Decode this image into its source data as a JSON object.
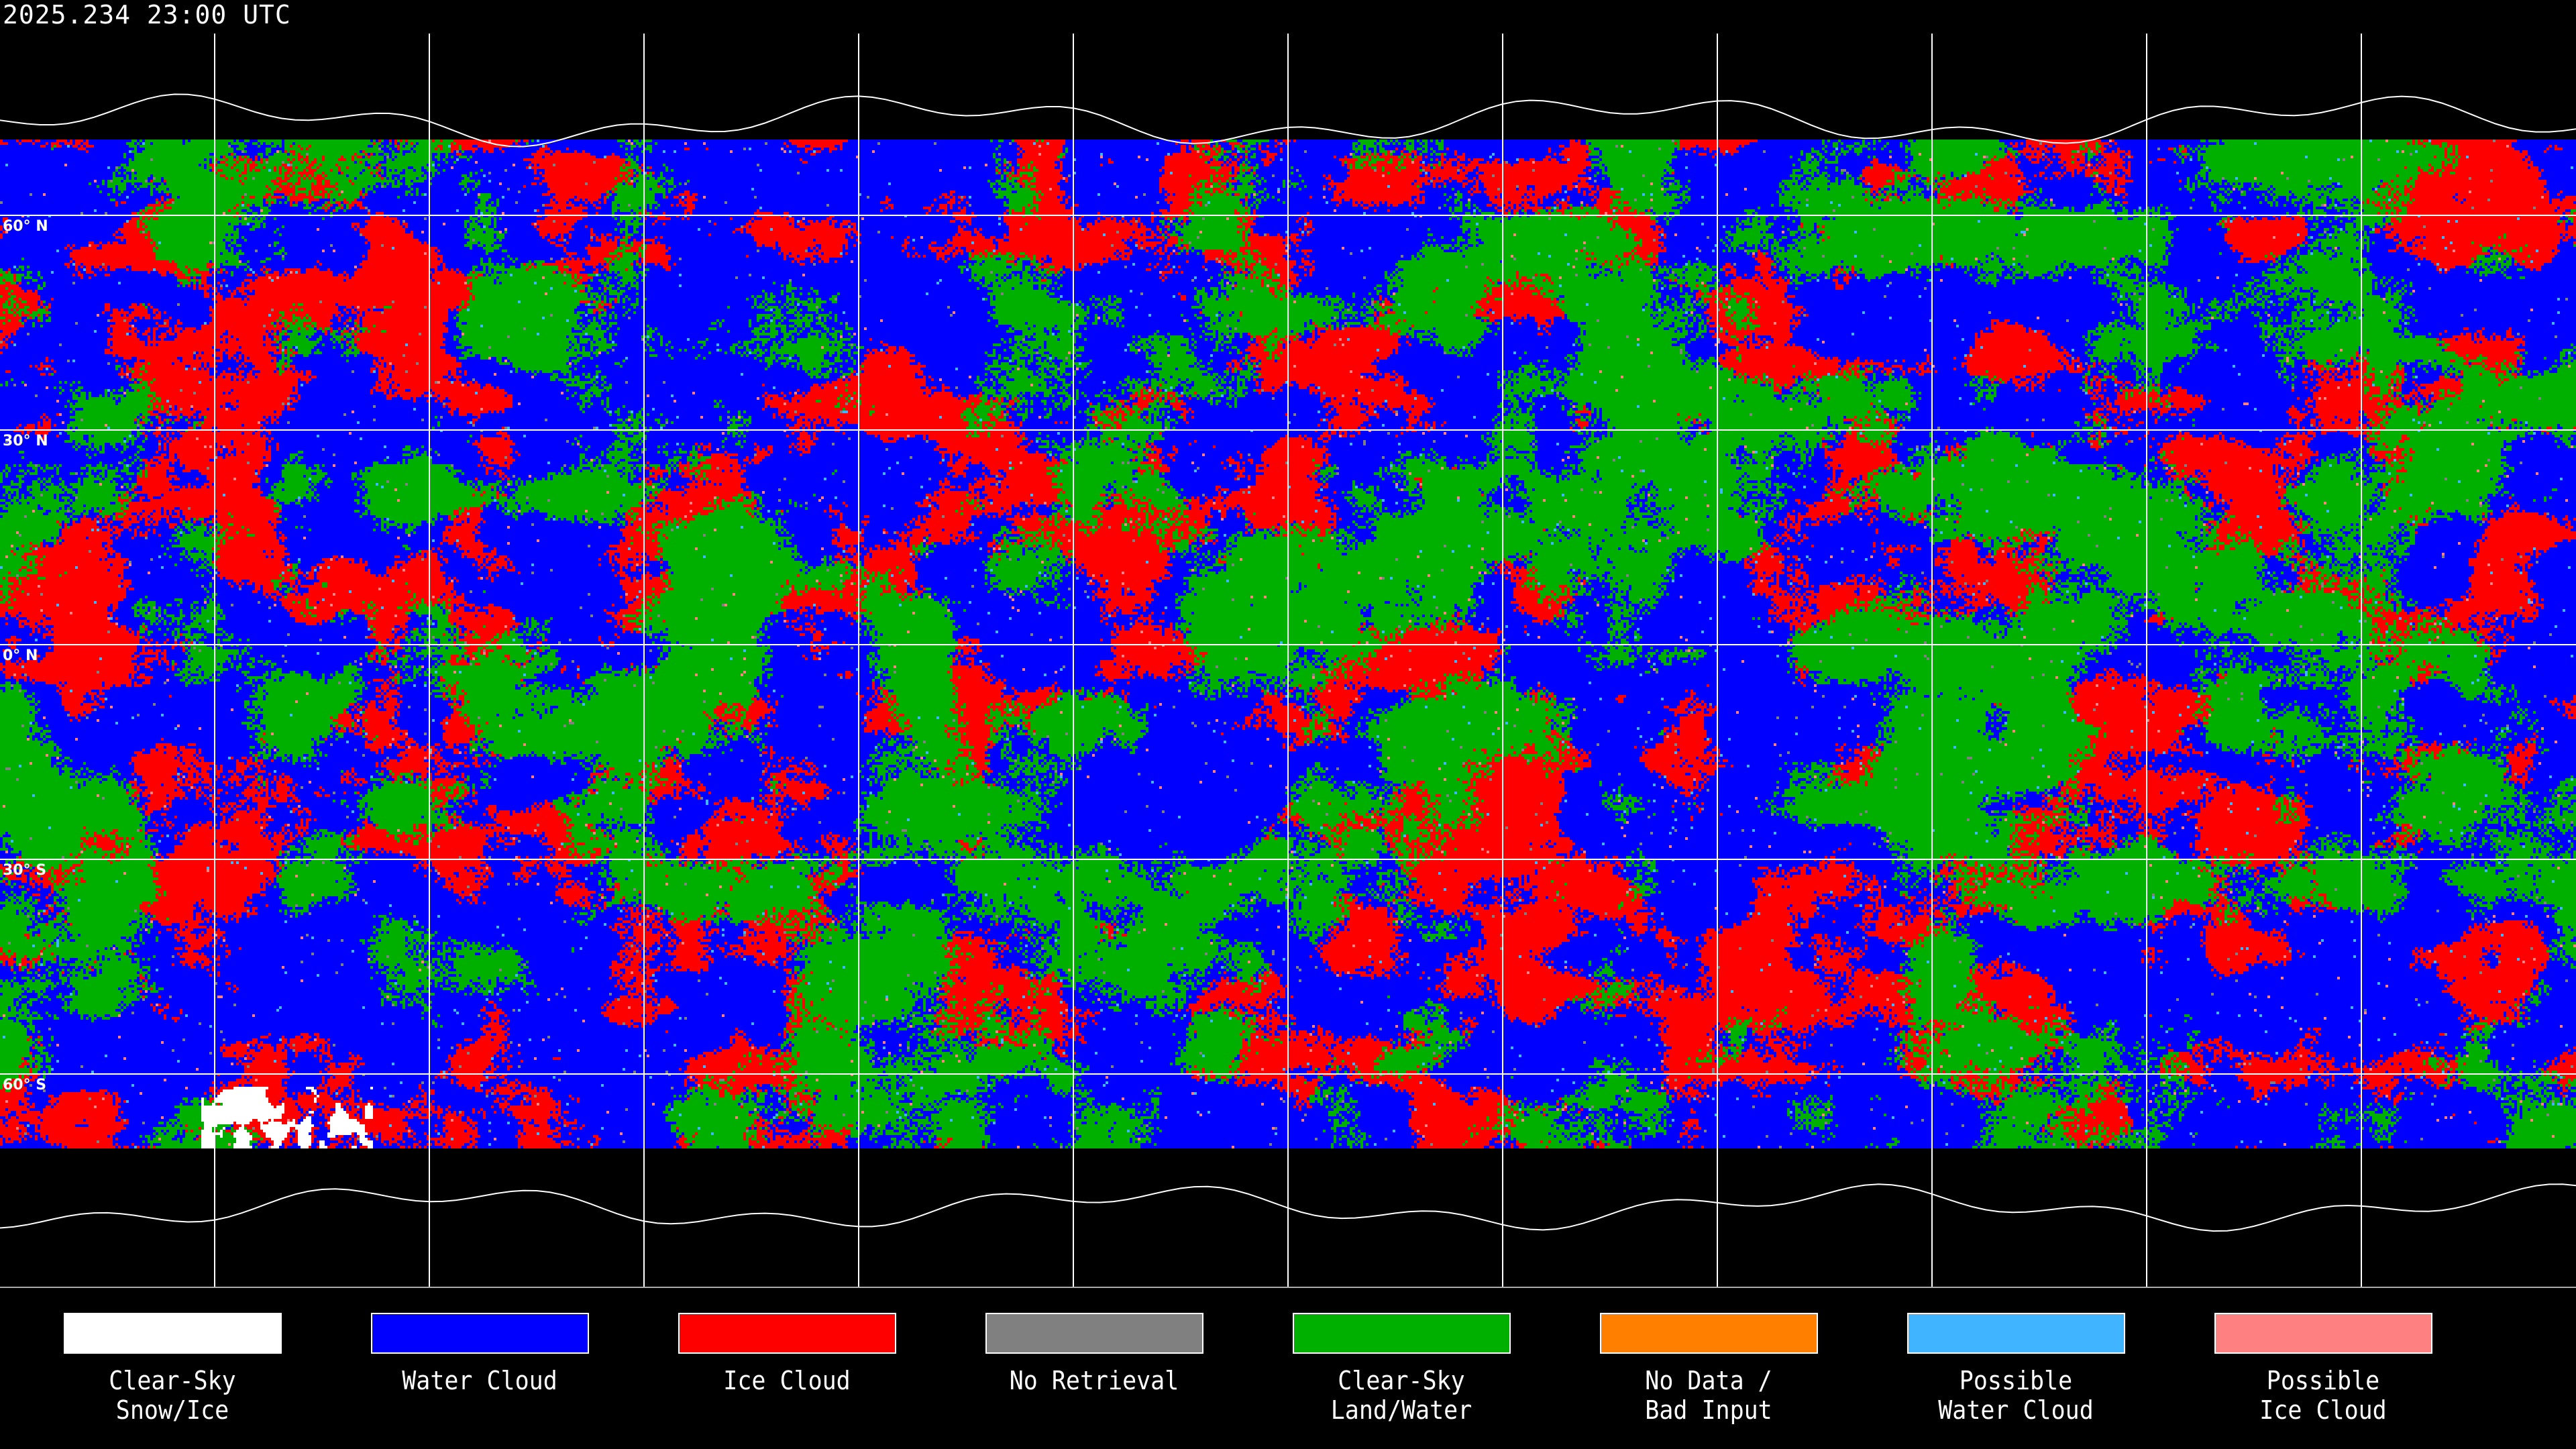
{
  "header": {
    "timestamp": "2025.234 23:00 UTC"
  },
  "map": {
    "projection": "equirectangular",
    "lat_labels": [
      "60° N",
      "30° N",
      "0° N",
      "30° S",
      "60° S"
    ],
    "gridline_interval_degrees": 30,
    "coastline_color": "#ffffff",
    "gridline_color": "#ffffff"
  },
  "legend": {
    "items": [
      {
        "label": "Clear-Sky\nSnow/Ice",
        "color": "#ffffff"
      },
      {
        "label": "Water Cloud",
        "color": "#0000ff"
      },
      {
        "label": "Ice Cloud",
        "color": "#ff0000"
      },
      {
        "label": "No Retrieval",
        "color": "#808080"
      },
      {
        "label": "Clear-Sky\nLand/Water",
        "color": "#00b000"
      },
      {
        "label": "No Data /\nBad Input",
        "color": "#ff8000"
      },
      {
        "label": "Possible\nWater Cloud",
        "color": "#40b4ff"
      },
      {
        "label": "Possible\nIce Cloud",
        "color": "#ff8080"
      }
    ]
  }
}
